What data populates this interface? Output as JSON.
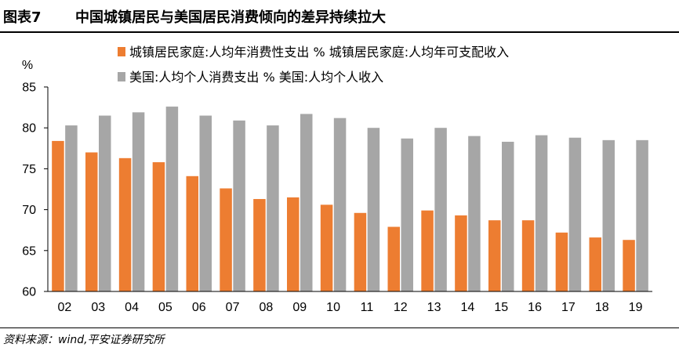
{
  "header": {
    "figure_number": "图表7",
    "title": "中国城镇居民与美国居民消费倾向的差异持续拉大"
  },
  "source": "资料来源：wind,平安证券研究所",
  "colors": {
    "series_china": "#ED7D31",
    "series_us": "#A6A6A6",
    "axis": "#000000"
  },
  "chart_data": {
    "type": "bar",
    "unit_label": "%",
    "categories": [
      "02",
      "03",
      "04",
      "05",
      "06",
      "07",
      "08",
      "09",
      "10",
      "11",
      "12",
      "13",
      "14",
      "15",
      "16",
      "17",
      "18",
      "19"
    ],
    "series": [
      {
        "name": "城镇居民家庭:人均年消费性支出 % 城镇居民家庭:人均年可支配收入",
        "values": [
          78.4,
          77.0,
          76.3,
          75.8,
          74.1,
          72.6,
          71.3,
          71.5,
          70.6,
          69.6,
          67.9,
          69.9,
          69.3,
          68.7,
          68.7,
          67.2,
          66.6,
          66.3
        ]
      },
      {
        "name": "美国:人均个人消费支出 % 美国:人均个人收入",
        "values": [
          80.3,
          81.5,
          81.9,
          82.6,
          81.5,
          80.9,
          80.3,
          81.7,
          81.2,
          80.0,
          78.7,
          80.0,
          79.0,
          78.3,
          79.1,
          78.8,
          78.5,
          78.5
        ]
      }
    ],
    "ylim": [
      60,
      85
    ],
    "yticks": [
      60,
      65,
      70,
      75,
      80,
      85
    ],
    "legend_position": "top",
    "grid": false
  }
}
